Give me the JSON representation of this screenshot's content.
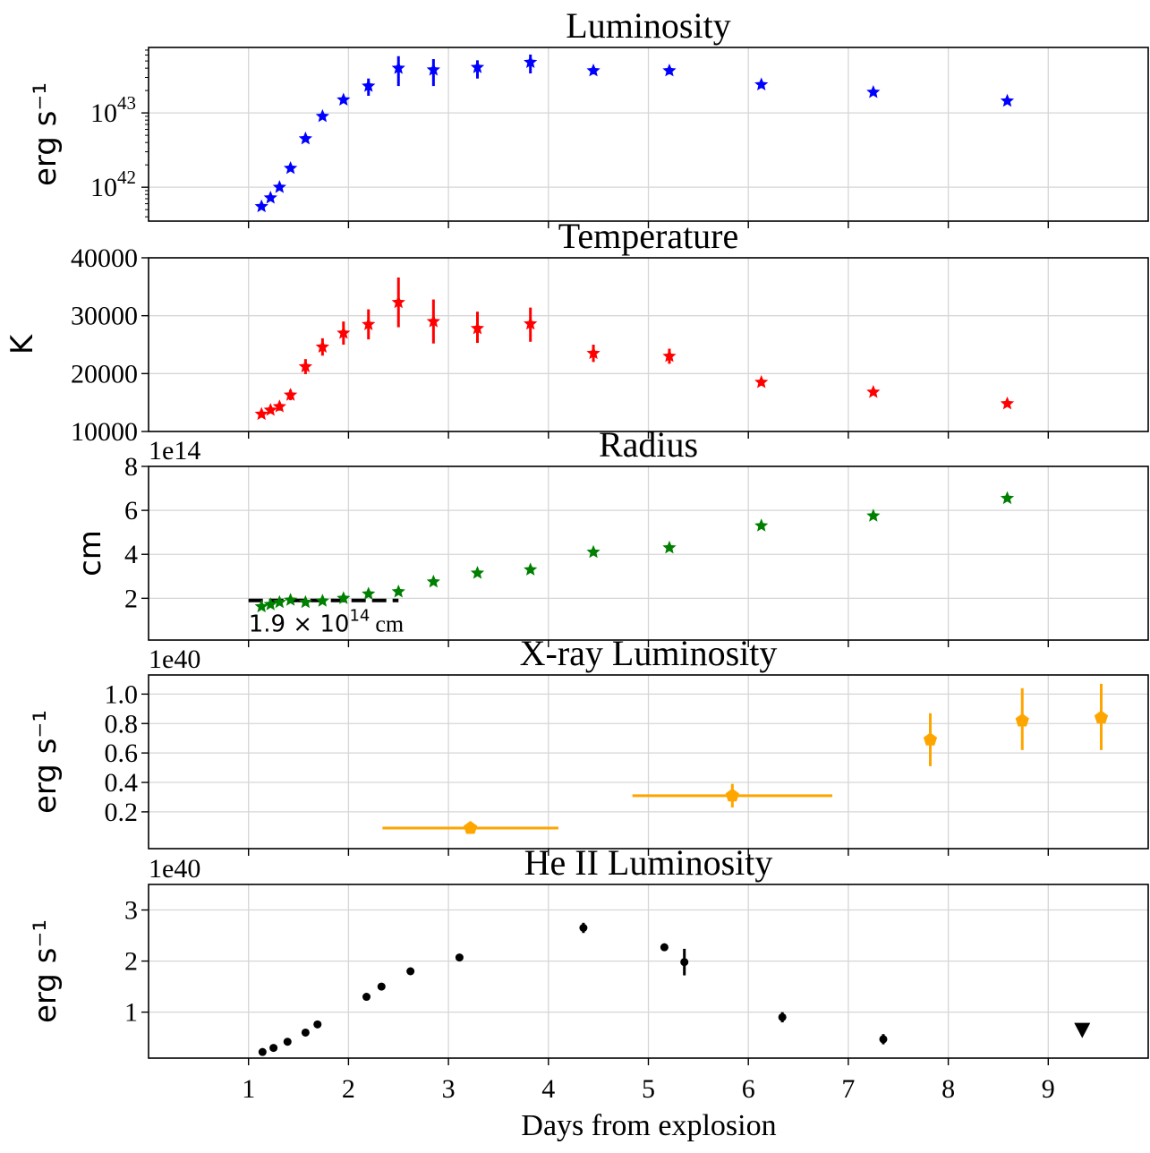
{
  "figure": {
    "xlabel": "Days from explosion",
    "xticks": [
      1,
      2,
      3,
      4,
      5,
      6,
      7,
      8,
      9
    ],
    "xlim": [
      0.0,
      10.0
    ]
  },
  "chart_data": [
    {
      "type": "scatter",
      "title": "Luminosity",
      "ylabel": "erg s⁻¹",
      "yscale": "log",
      "ylim": [
        3.5e+41,
        7.6e+43
      ],
      "yticks": [
        {
          "value": 1e+42,
          "label": "10^42"
        },
        {
          "value": 1e+43,
          "label": "10^43"
        }
      ],
      "color": "#0000ff",
      "marker": "star",
      "grid": true,
      "series": [
        {
          "x": [
            1.13,
            1.22,
            1.31,
            1.42,
            1.57,
            1.74,
            1.95,
            2.2,
            2.5,
            2.85,
            3.29,
            3.82,
            4.45,
            5.21,
            6.13,
            7.25,
            8.59
          ],
          "y": [
            5.5e+41,
            7.2e+41,
            1e+42,
            1.8e+42,
            4.5e+42,
            9e+42,
            1.5e+43,
            2.3e+43,
            4e+43,
            3.8e+43,
            4.1e+43,
            4.8e+43,
            3.7e+43,
            3.7e+43,
            2.4e+43,
            1.9e+43,
            1.45e+43
          ],
          "yerr_low": [
            0,
            0,
            0,
            0,
            0,
            0,
            0,
            6e+42,
            1.7e+43,
            1.5e+43,
            1.2e+43,
            1.4e+43,
            4e+42,
            4e+42,
            2.5e+42,
            1.5e+42,
            1e+42
          ],
          "yerr_high": [
            0,
            0,
            0,
            0,
            0,
            0,
            0,
            6e+42,
            1.8e+43,
            1.5e+43,
            1e+43,
            1.3e+43,
            4e+42,
            4e+42,
            2.5e+42,
            1.5e+42,
            1e+42
          ]
        }
      ]
    },
    {
      "type": "scatter",
      "title": "Temperature",
      "ylabel": "K",
      "yscale": "linear",
      "ylim": [
        10000,
        40000
      ],
      "yticks": [
        {
          "value": 10000,
          "label": "10000"
        },
        {
          "value": 20000,
          "label": "20000"
        },
        {
          "value": 30000,
          "label": "30000"
        },
        {
          "value": 40000,
          "label": "40000"
        }
      ],
      "color": "#ff0000",
      "marker": "star",
      "grid": true,
      "series": [
        {
          "x": [
            1.13,
            1.22,
            1.31,
            1.42,
            1.57,
            1.74,
            1.95,
            2.2,
            2.5,
            2.85,
            3.29,
            3.82,
            4.45,
            5.21,
            6.13,
            7.25,
            8.59
          ],
          "y": [
            13000,
            13700,
            14300,
            16300,
            21200,
            24600,
            27000,
            28500,
            32300,
            29000,
            27800,
            28600,
            23500,
            23000,
            18500,
            16800,
            14800
          ],
          "yerr_low": [
            600,
            600,
            700,
            900,
            1300,
            1500,
            2000,
            2600,
            4300,
            3800,
            2500,
            3100,
            1500,
            1300,
            600,
            500,
            400
          ],
          "yerr_high": [
            600,
            600,
            700,
            900,
            1300,
            1500,
            2000,
            2600,
            4300,
            3800,
            2900,
            2800,
            1500,
            1300,
            600,
            500,
            400
          ]
        }
      ]
    },
    {
      "type": "scatter",
      "title": "Radius",
      "ylabel": "cm",
      "offset_label": "1e14",
      "yscale": "linear",
      "ylim": [
        0.1,
        8.0
      ],
      "yticks": [
        {
          "value": 2,
          "label": "2"
        },
        {
          "value": 4,
          "label": "4"
        },
        {
          "value": 6,
          "label": "6"
        },
        {
          "value": 8,
          "label": "8"
        }
      ],
      "color": "#008000",
      "marker": "star",
      "grid": true,
      "series": [
        {
          "x": [
            1.13,
            1.22,
            1.31,
            1.42,
            1.57,
            1.74,
            1.95,
            2.2,
            2.5,
            2.85,
            3.29,
            3.82,
            4.45,
            5.21,
            6.13,
            7.25,
            8.59
          ],
          "y": [
            1.62,
            1.72,
            1.82,
            1.92,
            1.82,
            1.88,
            2.0,
            2.2,
            2.3,
            2.75,
            3.15,
            3.3,
            4.1,
            4.3,
            5.3,
            5.75,
            6.55
          ]
        }
      ],
      "hline": {
        "y": 1.9,
        "xmin": 1.0,
        "xmax": 2.5,
        "style": "dashed",
        "color": "#000000"
      },
      "annotation": {
        "text_main": "1.9 × 10",
        "text_sup": "14",
        "text_unit": "cm",
        "x": 1.0,
        "y": 0.85
      }
    },
    {
      "type": "scatter",
      "title": "X-ray Luminosity",
      "ylabel": "erg s⁻¹",
      "offset_label": "1e40",
      "yscale": "linear",
      "ylim": [
        -0.05,
        1.13
      ],
      "yticks": [
        {
          "value": 0.2,
          "label": "0.2"
        },
        {
          "value": 0.4,
          "label": "0.4"
        },
        {
          "value": 0.6,
          "label": "0.6"
        },
        {
          "value": 0.8,
          "label": "0.8"
        },
        {
          "value": 1.0,
          "label": "1.0"
        }
      ],
      "color": "#ffa500",
      "marker": "pentagon",
      "grid": true,
      "series": [
        {
          "x": [
            3.22,
            5.84,
            7.82,
            8.74,
            9.53
          ],
          "y": [
            0.09,
            0.31,
            0.69,
            0.82,
            0.84
          ],
          "xerr_low": [
            0.88,
            1.0,
            0,
            0,
            0
          ],
          "xerr_high": [
            0.88,
            1.0,
            0,
            0,
            0
          ],
          "yerr_low": [
            0,
            0.08,
            0.18,
            0.2,
            0.22
          ],
          "yerr_high": [
            0,
            0.08,
            0.18,
            0.22,
            0.23
          ]
        }
      ]
    },
    {
      "type": "scatter",
      "title": "He II Luminosity",
      "ylabel": "erg s⁻¹",
      "offset_label": "1e40",
      "yscale": "linear",
      "ylim": [
        0.1,
        3.5
      ],
      "yticks": [
        {
          "value": 1,
          "label": "1"
        },
        {
          "value": 2,
          "label": "2"
        },
        {
          "value": 3,
          "label": "3"
        }
      ],
      "color": "#000000",
      "marker": "circle",
      "grid": true,
      "series": [
        {
          "x": [
            1.14,
            1.25,
            1.39,
            1.57,
            1.69,
            2.18,
            2.33,
            2.62,
            3.11,
            4.35,
            5.16,
            5.36,
            6.34,
            7.35
          ],
          "y": [
            0.22,
            0.3,
            0.42,
            0.6,
            0.76,
            1.3,
            1.5,
            1.8,
            2.07,
            2.65,
            2.27,
            1.98,
            0.9,
            0.47
          ],
          "yerr_low": [
            0,
            0,
            0,
            0,
            0,
            0,
            0,
            0,
            0,
            0.1,
            0,
            0.26,
            0.1,
            0.1
          ],
          "yerr_high": [
            0,
            0,
            0,
            0,
            0,
            0,
            0,
            0,
            0,
            0.1,
            0,
            0.26,
            0.1,
            0.1
          ]
        }
      ],
      "upper_limits": {
        "x": [
          9.34
        ],
        "y": [
          0.65
        ],
        "marker": "triangle-down"
      }
    }
  ]
}
